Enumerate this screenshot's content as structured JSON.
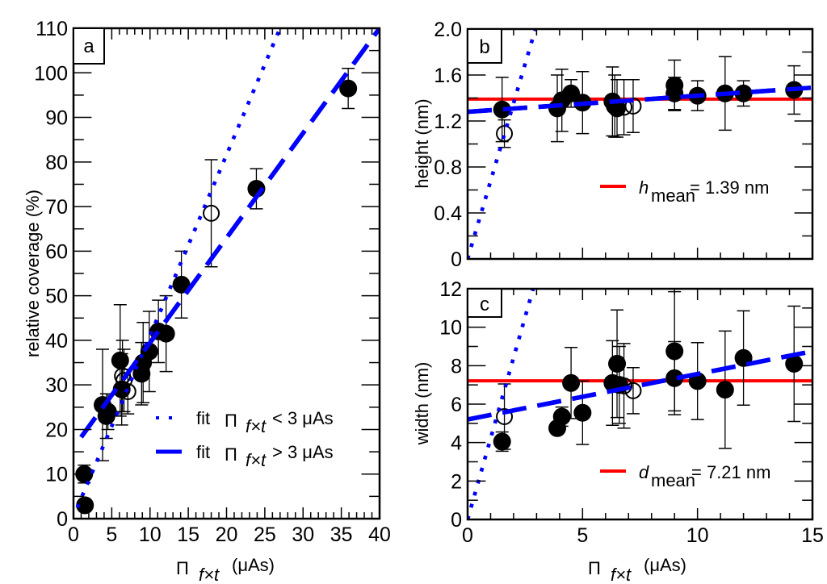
{
  "chart_data": [
    {
      "id": "a",
      "type": "scatter",
      "panel_label": "a",
      "xlabel": "Π f×t (μAs)",
      "xlabel_symbol": "Π",
      "xlabel_subscript": "f×t",
      "xlabel_unit": "(μAs)",
      "ylabel": "relative coverage (%)",
      "xlim": [
        0,
        40
      ],
      "ylim": [
        0,
        110
      ],
      "xticks": [
        0,
        5,
        10,
        15,
        20,
        25,
        30,
        35,
        40
      ],
      "xtick_labels": [
        "0",
        "5",
        "10",
        "15",
        "20",
        "25",
        "30",
        "35",
        "40"
      ],
      "yticks": [
        0,
        10,
        20,
        30,
        40,
        50,
        60,
        70,
        80,
        90,
        100,
        110
      ],
      "ytick_labels": [
        "0",
        "10",
        "20",
        "30",
        "40",
        "50",
        "60",
        "70",
        "80",
        "90",
        "100",
        "110"
      ],
      "grid": false,
      "legend_position": "bottom-right",
      "legend": [
        {
          "label_prefix": "fit",
          "symbol": "Π",
          "subscript": "f×t",
          "label_suffix": "< 3 μAs",
          "style": "dotted",
          "color": "#0000ff"
        },
        {
          "label_prefix": "fit",
          "symbol": "Π",
          "subscript": "f×t",
          "label_suffix": "> 3 μAs",
          "style": "dashed",
          "color": "#0000ff"
        }
      ],
      "series": [
        {
          "name": "filled",
          "marker": "filled-circle",
          "color": "#000000",
          "points": [
            {
              "x": 1.4,
              "y": 10,
              "err": 2
            },
            {
              "x": 1.5,
              "y": 3,
              "err": 0
            },
            {
              "x": 3.8,
              "y": 25.5,
              "err": 12.5
            },
            {
              "x": 4.3,
              "y": 23,
              "err": 5
            },
            {
              "x": 4.5,
              "y": 24,
              "err": 4
            },
            {
              "x": 6.1,
              "y": 35.5,
              "err": 12.5
            },
            {
              "x": 6.3,
              "y": 29,
              "err": 8
            },
            {
              "x": 8.9,
              "y": 32.5,
              "err": 7
            },
            {
              "x": 9.1,
              "y": 35,
              "err": 9
            },
            {
              "x": 9.9,
              "y": 37.5,
              "err": 9
            },
            {
              "x": 11.1,
              "y": 42,
              "err": 7
            },
            {
              "x": 12.1,
              "y": 41.5,
              "err": 8.5
            },
            {
              "x": 14.1,
              "y": 52.5,
              "err": 7.5
            },
            {
              "x": 23.9,
              "y": 74,
              "err": 4.5
            },
            {
              "x": 35.9,
              "y": 96.5,
              "err": 4.5
            }
          ]
        },
        {
          "name": "open",
          "marker": "open-circle",
          "color": "#000000",
          "points": [
            {
              "x": 6.4,
              "y": 32,
              "err": 8
            },
            {
              "x": 6.6,
              "y": 31,
              "err": 7
            },
            {
              "x": 7.1,
              "y": 28.5,
              "err": 5
            },
            {
              "x": 18.0,
              "y": 68.5,
              "err": 12
            }
          ]
        }
      ],
      "fit_lines": [
        {
          "name": "fit < 3 μAs",
          "style": "dotted",
          "color": "#0000ff",
          "x": [
            0.5,
            27
          ],
          "y": [
            2.5,
            110
          ]
        },
        {
          "name": "fit > 3 μAs",
          "style": "dashed",
          "color": "#0000ff",
          "x": [
            1,
            40
          ],
          "y": [
            18.3,
            110
          ]
        }
      ]
    },
    {
      "id": "b",
      "type": "scatter",
      "panel_label": "b",
      "xlabel": "",
      "ylabel": "height (nm)",
      "xlim": [
        0,
        15
      ],
      "ylim": [
        0,
        2.0
      ],
      "xticks": [
        0,
        5,
        10,
        15
      ],
      "xtick_labels": [],
      "yticks": [
        0,
        0.4,
        0.8,
        1.2,
        1.6,
        2.0
      ],
      "ytick_labels": [
        "0",
        "0.4",
        "0.8",
        "1.2",
        "1.6",
        "2.0"
      ],
      "grid": false,
      "legend_position": "center-right",
      "mean_legend": {
        "symbol": "h",
        "subscript": "mean",
        "text": "= 1.39 nm",
        "color": "#ff0000"
      },
      "mean_value": 1.39,
      "series": [
        {
          "name": "filled",
          "marker": "filled-circle",
          "color": "#000000",
          "points": [
            {
              "x": 1.5,
              "y": 1.3,
              "err": 0.28
            },
            {
              "x": 3.9,
              "y": 1.31,
              "err": 0.29
            },
            {
              "x": 4.1,
              "y": 1.38,
              "err": 0.27
            },
            {
              "x": 4.5,
              "y": 1.44,
              "err": 0.12
            },
            {
              "x": 5.0,
              "y": 1.36,
              "err": 0.27
            },
            {
              "x": 6.3,
              "y": 1.37,
              "err": 0.3
            },
            {
              "x": 6.4,
              "y": 1.33,
              "err": 0.27
            },
            {
              "x": 6.5,
              "y": 1.31,
              "err": 0.25
            },
            {
              "x": 9.0,
              "y": 1.51,
              "err": 0.22
            },
            {
              "x": 9.0,
              "y": 1.44,
              "err": 0.14
            },
            {
              "x": 10.0,
              "y": 1.42,
              "err": 0.13
            },
            {
              "x": 11.2,
              "y": 1.44,
              "err": 0.32
            },
            {
              "x": 12.0,
              "y": 1.44,
              "err": 0.11
            },
            {
              "x": 14.2,
              "y": 1.47,
              "err": 0.21
            }
          ]
        },
        {
          "name": "open",
          "marker": "open-circle",
          "color": "#000000",
          "points": [
            {
              "x": 1.6,
              "y": 1.09,
              "err": 0.12
            },
            {
              "x": 6.8,
              "y": 1.32,
              "err": 0.24
            },
            {
              "x": 7.2,
              "y": 1.33,
              "err": 0.23
            }
          ]
        }
      ],
      "fit_lines": [
        {
          "name": "fit < 3 μAs",
          "style": "dotted",
          "color": "#0000ff",
          "x": [
            0,
            2.95
          ],
          "y": [
            0,
            2.0
          ]
        },
        {
          "name": "fit > 3 μAs",
          "style": "dashed",
          "color": "#0000ff",
          "x": [
            0,
            15
          ],
          "y": [
            1.28,
            1.49
          ]
        },
        {
          "name": "mean",
          "style": "solid",
          "color": "#ff0000",
          "x": [
            0,
            15
          ],
          "y": [
            1.39,
            1.39
          ]
        }
      ]
    },
    {
      "id": "c",
      "type": "scatter",
      "panel_label": "c",
      "xlabel": "Π f×t (μAs)",
      "xlabel_symbol": "Π",
      "xlabel_subscript": "f×t",
      "xlabel_unit": "(μAs)",
      "ylabel": "width (nm)",
      "xlim": [
        0,
        15
      ],
      "ylim": [
        0,
        12
      ],
      "xticks": [
        0,
        5,
        10,
        15
      ],
      "xtick_labels": [
        "0",
        "5",
        "10",
        "15"
      ],
      "yticks": [
        0,
        2,
        4,
        6,
        8,
        10,
        12
      ],
      "ytick_labels": [
        "0",
        "2",
        "4",
        "6",
        "8",
        "10",
        "12"
      ],
      "grid": false,
      "legend_position": "bottom-right",
      "mean_legend": {
        "symbol": "d",
        "subscript": "mean",
        "text": "= 7.21 nm",
        "color": "#ff0000"
      },
      "mean_value": 7.21,
      "series": [
        {
          "name": "filled",
          "marker": "filled-circle",
          "color": "#000000",
          "points": [
            {
              "x": 1.5,
              "y": 4.05,
              "err": 0.5
            },
            {
              "x": 3.9,
              "y": 4.75,
              "err": 0.2
            },
            {
              "x": 4.1,
              "y": 5.35,
              "err": 0.5
            },
            {
              "x": 4.5,
              "y": 7.1,
              "err": 1.85
            },
            {
              "x": 5.0,
              "y": 5.55,
              "err": 1.65
            },
            {
              "x": 6.3,
              "y": 7.1,
              "err": 2.2
            },
            {
              "x": 6.5,
              "y": 8.1,
              "err": 2.8
            },
            {
              "x": 6.6,
              "y": 7.0,
              "err": 2.0
            },
            {
              "x": 9.0,
              "y": 8.75,
              "err": 3.1
            },
            {
              "x": 9.0,
              "y": 7.35,
              "err": 1.9
            },
            {
              "x": 10.0,
              "y": 7.2,
              "err": 2.0
            },
            {
              "x": 11.2,
              "y": 6.75,
              "err": 3.05
            },
            {
              "x": 12.0,
              "y": 8.4,
              "err": 2.45
            },
            {
              "x": 14.2,
              "y": 8.1,
              "err": 3.0
            }
          ]
        },
        {
          "name": "open",
          "marker": "open-circle",
          "color": "#000000",
          "points": [
            {
              "x": 1.6,
              "y": 5.35,
              "err": 1.7
            },
            {
              "x": 6.8,
              "y": 6.95,
              "err": 2.2
            },
            {
              "x": 7.2,
              "y": 6.7,
              "err": 1.2
            }
          ]
        }
      ],
      "fit_lines": [
        {
          "name": "fit < 3 μAs",
          "style": "dotted",
          "color": "#0000ff",
          "x": [
            0,
            2.85
          ],
          "y": [
            0,
            12
          ]
        },
        {
          "name": "fit > 3 μAs",
          "style": "dashed",
          "color": "#0000ff",
          "x": [
            0,
            15
          ],
          "y": [
            5.2,
            8.75
          ]
        },
        {
          "name": "mean",
          "style": "solid",
          "color": "#ff0000",
          "x": [
            0,
            15
          ],
          "y": [
            7.21,
            7.21
          ]
        }
      ]
    }
  ]
}
